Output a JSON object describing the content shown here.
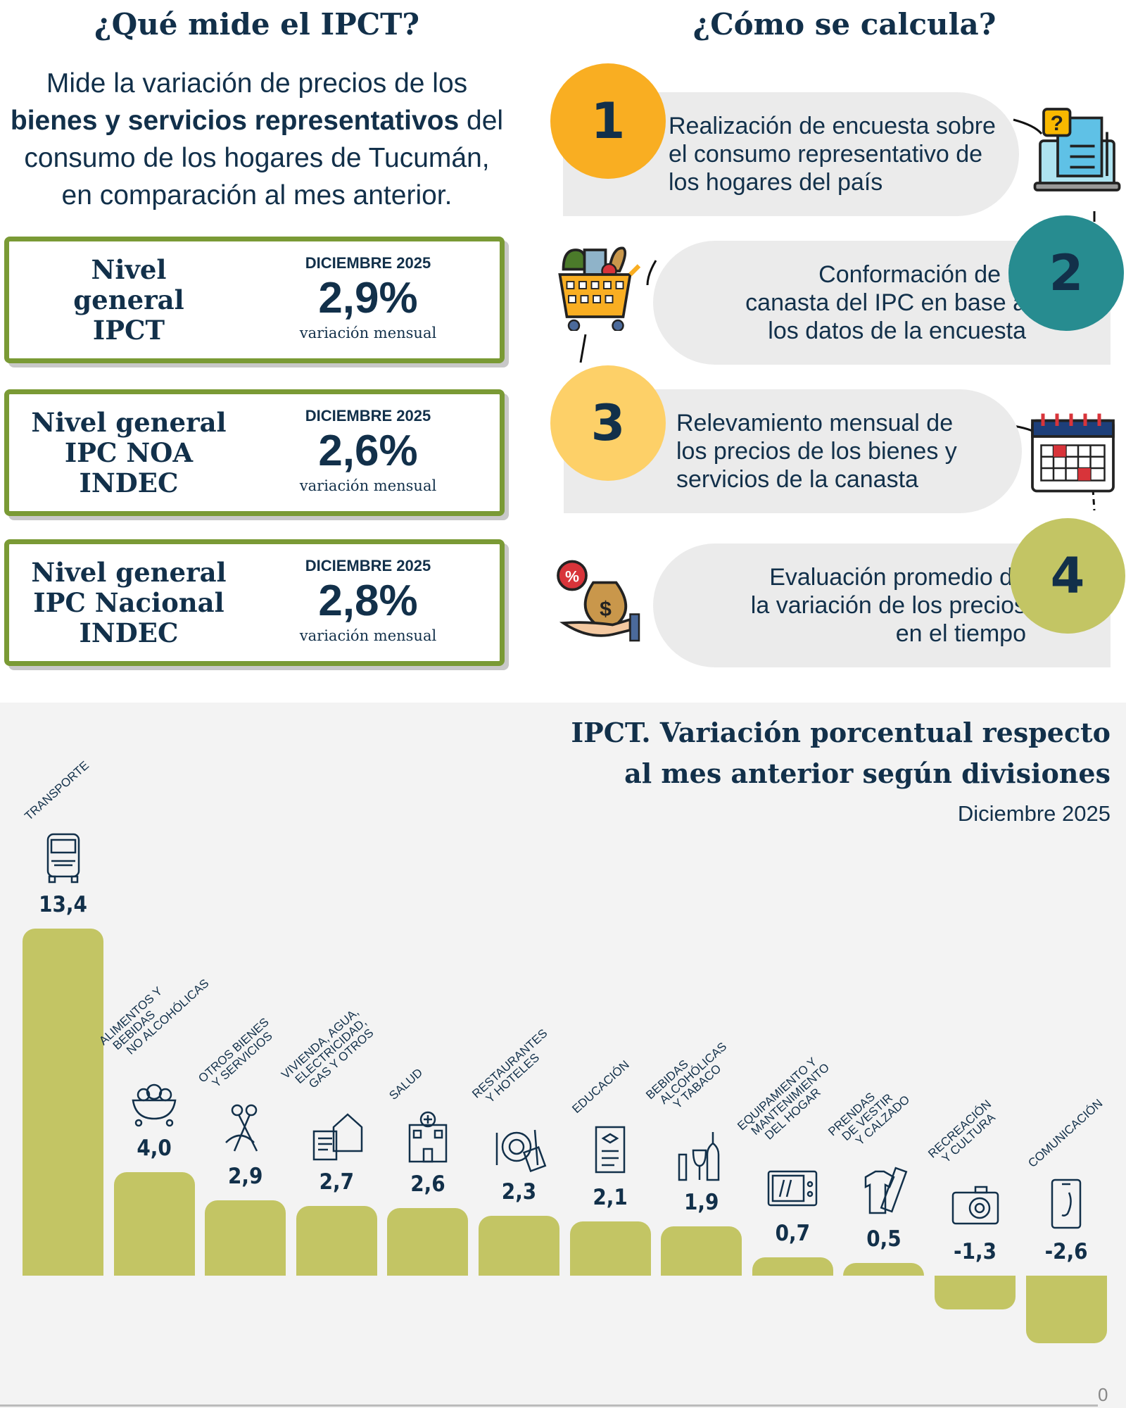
{
  "left": {
    "title": "¿Qué mide el IPCT?",
    "desc_1": "Mide la variación de precios de los",
    "desc_2_bold": "bienes y servicios representativos",
    "desc_2_rest": " del",
    "desc_3": "consumo de los hogares de Tucumán,",
    "desc_4": "en comparación al mes anterior.",
    "boxes": [
      {
        "name_lines": [
          "Nivel",
          "general",
          "IPCT"
        ],
        "month": "DICIEMBRE 2025",
        "value": "2,9%",
        "unit": "variación mensual"
      },
      {
        "name_lines": [
          "Nivel general",
          "IPC NOA",
          "INDEC"
        ],
        "month": "DICIEMBRE 2025",
        "value": "2,6%",
        "unit": "variación mensual"
      },
      {
        "name_lines": [
          "Nivel general",
          "IPC Nacional",
          "INDEC"
        ],
        "month": "DICIEMBRE 2025",
        "value": "2,8%",
        "unit": "variación mensual"
      }
    ]
  },
  "right": {
    "title": "¿Cómo se calcula?",
    "steps": [
      {
        "number": "1",
        "color": "#f9ae22",
        "lines": [
          "Realización de encuesta sobre",
          "el consumo representativo de",
          "los hogares del país"
        ],
        "icon": "survey-laptop-icon"
      },
      {
        "number": "2",
        "color": "#278c90",
        "lines": [
          "Conformación de la",
          "canasta del IPC en base a",
          "los datos de la encuesta"
        ],
        "icon": "shopping-cart-icon"
      },
      {
        "number": "3",
        "color": "#fdd068",
        "lines": [
          "Relevamiento mensual de",
          "los precios de los bienes y",
          "servicios de la canasta"
        ],
        "icon": "calendar-icon"
      },
      {
        "number": "4",
        "color": "#c3c564",
        "lines": [
          "Evaluación promedio de",
          "la variación de los precios",
          "en el tiempo"
        ],
        "icon": "money-bag-hand-icon"
      }
    ]
  },
  "colors": {
    "text": "#12304a",
    "box_border": "#7a9a35",
    "bar": "#c3c564",
    "chart_bg": "#f3f3f3"
  },
  "chart_data": {
    "type": "bar",
    "title_lines": [
      "IPCT. Variación porcentual respecto",
      "al mes anterior según divisiones"
    ],
    "subtitle": "Diciembre 2025",
    "baseline_label": "0",
    "categories": [
      [
        "TRANSPORTE"
      ],
      [
        "ALIMENTOS Y",
        "BEBIDAS",
        "NO ALCOHÓLICAS"
      ],
      [
        "OTROS BIENES",
        "Y SERVICIOS"
      ],
      [
        "VIVIENDA, AGUA,",
        "ELECTRICIDAD,",
        "GAS Y OTROS"
      ],
      [
        "SALUD"
      ],
      [
        "RESTAURANTES",
        "Y HOTELES"
      ],
      [
        "EDUCACIÓN"
      ],
      [
        "BEBIDAS",
        "ALCOHÓLICAS",
        "Y TABACO"
      ],
      [
        "EQUIPAMIENTO Y",
        "MANTENIMIENTO",
        "DEL HOGAR"
      ],
      [
        "PRENDAS",
        "DE VESTIR",
        "Y CALZADO"
      ],
      [
        "RECREACIÓN",
        "Y CULTURA"
      ],
      [
        "COMUNICACIÓN"
      ]
    ],
    "icons": [
      "bus-icon",
      "food-bowl-icon",
      "scissors-icon",
      "house-bills-icon",
      "hospital-icon",
      "plate-cutlery-icon",
      "diploma-icon",
      "wine-bottle-icon",
      "microwave-icon",
      "clothes-icon",
      "camera-icon",
      "phone-icon"
    ],
    "values": [
      13.4,
      4.0,
      2.9,
      2.7,
      2.6,
      2.3,
      2.1,
      1.9,
      0.7,
      0.5,
      -1.3,
      -2.6
    ],
    "value_labels": [
      "13,4",
      "4,0",
      "2,9",
      "2,7",
      "2,6",
      "2,3",
      "2,1",
      "1,9",
      "0,7",
      "0,5",
      "-1,3",
      "-2,6"
    ],
    "grid": false,
    "legend": "none"
  }
}
